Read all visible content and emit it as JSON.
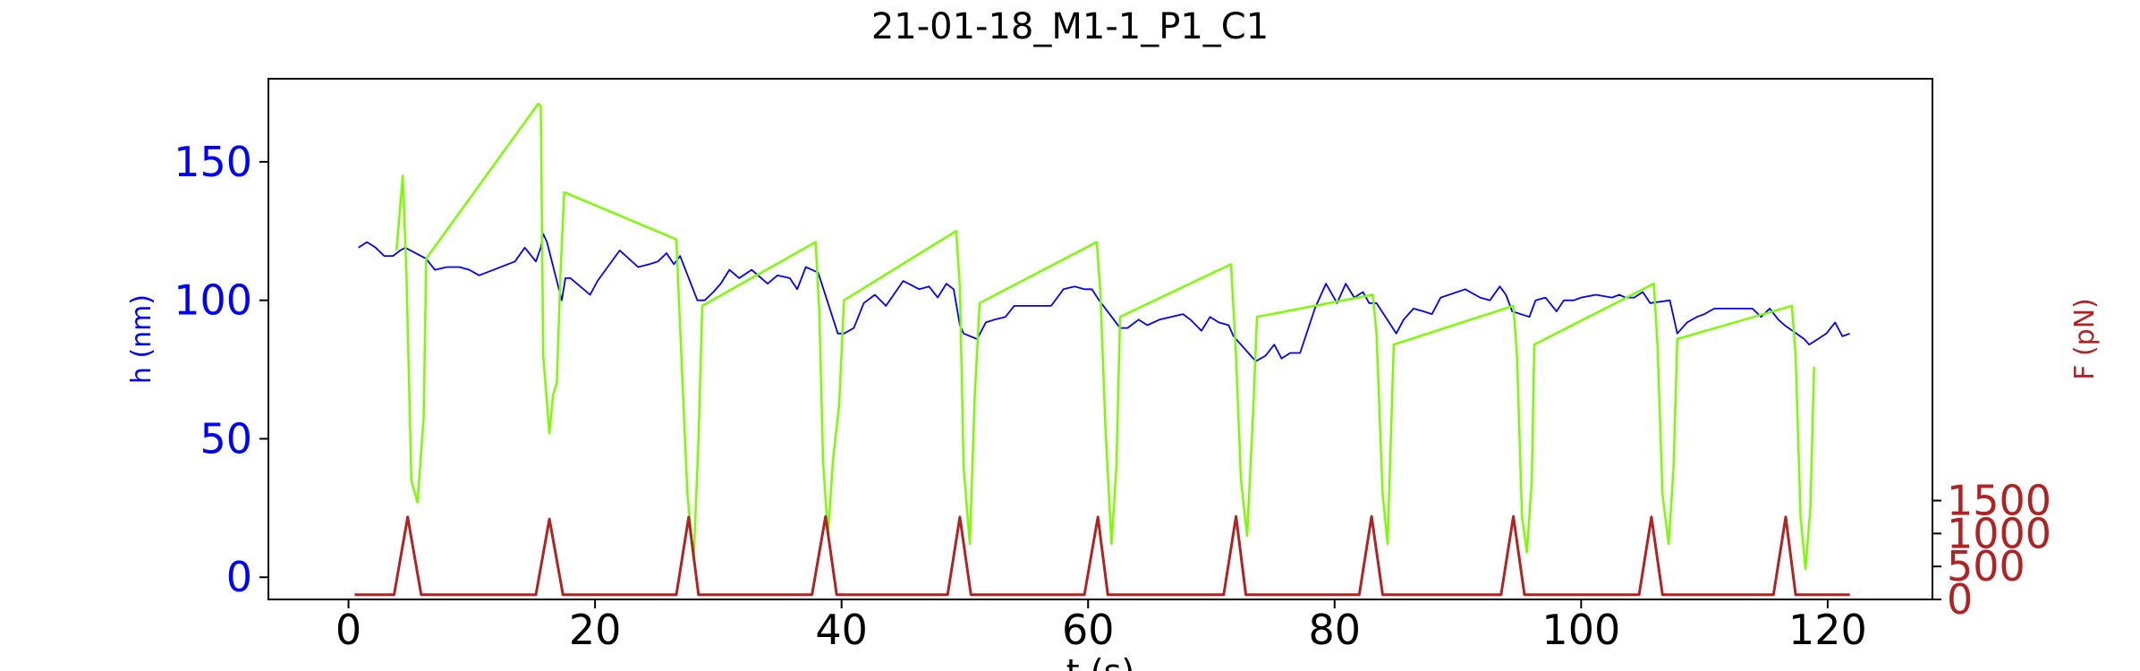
{
  "chart_data": {
    "type": "line",
    "title": "21-01-18_M1-1_P1_C1",
    "xlabel": "t (s)",
    "ylabel": "h (nm)",
    "y2label": "F (pN)",
    "xlim": [
      -6.5,
      128.5
    ],
    "ylim": [
      -8,
      180
    ],
    "y2lim": [
      0,
      7900
    ],
    "xticks": [
      0,
      20,
      40,
      60,
      80,
      100,
      120
    ],
    "yticks": [
      0,
      50,
      100,
      150
    ],
    "y2ticks": [
      0,
      500,
      1000,
      1500
    ],
    "grid": false,
    "legend": "none",
    "colors": {
      "h_blue": "#0000ff",
      "h_green": "#7cfc00",
      "force": "#b22222",
      "axes": "#000000"
    },
    "series": [
      {
        "axis": "left",
        "color": "#0000ff",
        "x": [
          0.8,
          1.5,
          2.2,
          2.9,
          3.6,
          4.2,
          4.6,
          6.3,
          7.0,
          8.0,
          9.0,
          9.8,
          10.6,
          13.5,
          14.3,
          15.2,
          15.6,
          15.8,
          16.1,
          17.3,
          17.6,
          18.0,
          19.6,
          20.2,
          22.0,
          23.5,
          24.4,
          25.1,
          25.8,
          26.4,
          26.9,
          28.3,
          28.9,
          29.6,
          30.2,
          30.9,
          31.7,
          32.7,
          34.0,
          34.8,
          35.8,
          36.4,
          37.1,
          37.6,
          38.1,
          39.7,
          40.2,
          41.0,
          41.8,
          42.7,
          43.6,
          45.0,
          46.3,
          47.1,
          47.8,
          48.5,
          49.1,
          49.6,
          49.9,
          51.0,
          51.7,
          52.4,
          53.3,
          54.0,
          56.0,
          57.0,
          58.0,
          58.9,
          59.7,
          60.3,
          60.9,
          62.6,
          63.2,
          64.1,
          64.8,
          65.8,
          67.7,
          68.3,
          69.2,
          69.9,
          70.6,
          71.4,
          71.8,
          73.6,
          74.4,
          75.1,
          75.7,
          76.4,
          77.2,
          78.4,
          79.3,
          80.2,
          80.9,
          81.6,
          82.3,
          82.8,
          83.4,
          85.0,
          85.6,
          86.4,
          87.2,
          87.9,
          88.6,
          90.6,
          91.8,
          92.6,
          93.4,
          93.9,
          94.4,
          95.8,
          96.3,
          97.1,
          98.0,
          98.6,
          99.4,
          100.0,
          101.2,
          102.5,
          103.1,
          103.6,
          104.3,
          105.0,
          105.6,
          107.2,
          107.8,
          108.6,
          109.4,
          110.0,
          110.8,
          111.5,
          113.9,
          114.6,
          115.3,
          116.0,
          116.5,
          118.1,
          118.5,
          119.2,
          119.9,
          120.6,
          121.2,
          121.8
        ],
        "y": [
          119,
          121,
          119,
          116,
          116,
          118,
          119,
          115,
          111,
          112,
          112,
          111,
          109,
          114,
          119,
          114,
          119,
          124,
          121,
          100,
          108,
          108,
          102,
          107,
          118,
          112,
          113,
          114,
          117,
          113,
          116,
          100,
          100,
          103,
          106,
          111,
          108,
          111,
          106,
          109,
          108,
          104,
          112,
          111,
          110,
          88,
          88,
          90,
          99,
          102,
          98,
          107,
          104,
          105,
          101,
          106,
          104,
          91,
          88,
          86,
          92,
          93,
          94,
          98,
          98,
          98,
          104,
          105,
          104,
          104,
          100,
          90,
          90,
          93,
          91,
          93,
          95,
          93,
          89,
          94,
          92,
          91,
          87,
          78,
          80,
          84,
          79,
          81,
          81,
          97,
          106,
          99,
          106,
          101,
          103,
          99,
          99,
          88,
          93,
          97,
          96,
          95,
          101,
          104,
          101,
          100,
          105,
          102,
          96,
          94,
          100,
          101,
          96,
          100,
          100,
          101,
          102,
          101,
          102,
          101,
          101,
          103,
          99,
          100,
          88,
          92,
          94,
          95,
          97,
          97,
          97,
          94,
          97,
          93,
          91,
          86,
          84,
          86,
          88,
          92,
          87,
          88
        ]
      },
      {
        "axis": "left",
        "color": "#7cfc00",
        "x": [
          3.9,
          4.4,
          4.7,
          5.1,
          5.6,
          6.1,
          6.3,
          15.4,
          15.6,
          15.8,
          16.3,
          16.6,
          16.9,
          17.2,
          17.5,
          26.6,
          27.0,
          27.5,
          28.0,
          28.4,
          28.7,
          37.9,
          38.2,
          38.5,
          38.9,
          39.3,
          39.8,
          40.2,
          49.3,
          49.6,
          49.9,
          50.4,
          50.8,
          51.2,
          60.7,
          61.0,
          61.4,
          61.9,
          62.3,
          62.6,
          71.6,
          72.0,
          72.4,
          72.9,
          73.4,
          73.7,
          83.1,
          83.4,
          83.9,
          84.3,
          84.8,
          94.5,
          94.8,
          95.2,
          95.6,
          96.0,
          96.2,
          105.9,
          106.2,
          106.6,
          107.1,
          107.5,
          107.8,
          117.1,
          117.4,
          117.8,
          118.2,
          118.6,
          118.9
        ],
        "y": [
          118,
          145,
          110,
          35,
          27,
          58,
          115,
          171,
          170,
          80,
          52,
          66,
          70,
          110,
          139,
          122,
          80,
          30,
          6,
          50,
          98,
          121,
          95,
          42,
          15,
          42,
          62,
          100,
          125,
          105,
          40,
          12,
          65,
          99,
          121,
          103,
          55,
          12,
          40,
          94,
          113,
          80,
          35,
          15,
          60,
          94,
          102,
          88,
          30,
          12,
          84,
          98,
          80,
          22,
          9,
          35,
          84,
          106,
          83,
          30,
          12,
          40,
          86,
          98,
          80,
          22,
          3,
          25,
          76
        ]
      },
      {
        "axis": "right",
        "color": "#b22222",
        "x": [
          0.5,
          3.7,
          4.8,
          5.9,
          6.2,
          15.2,
          16.3,
          17.4,
          17.7,
          26.6,
          27.6,
          28.4,
          28.7,
          37.6,
          38.7,
          39.6,
          39.9,
          48.6,
          49.6,
          50.5,
          50.8,
          59.7,
          60.8,
          61.6,
          61.9,
          71.0,
          72.0,
          72.8,
          73.1,
          82.0,
          83.0,
          83.9,
          84.2,
          93.5,
          94.5,
          95.4,
          95.7,
          104.7,
          105.7,
          106.6,
          106.9,
          115.6,
          116.6,
          117.4,
          117.7,
          121.8
        ],
        "y": [
          70,
          70,
          1250,
          70,
          70,
          70,
          1220,
          70,
          70,
          70,
          1250,
          70,
          70,
          70,
          1260,
          70,
          70,
          70,
          1250,
          70,
          70,
          70,
          1250,
          70,
          70,
          70,
          1260,
          70,
          70,
          70,
          1260,
          70,
          70,
          70,
          1260,
          70,
          70,
          70,
          1250,
          70,
          70,
          70,
          1250,
          70,
          70,
          70
        ]
      }
    ]
  }
}
